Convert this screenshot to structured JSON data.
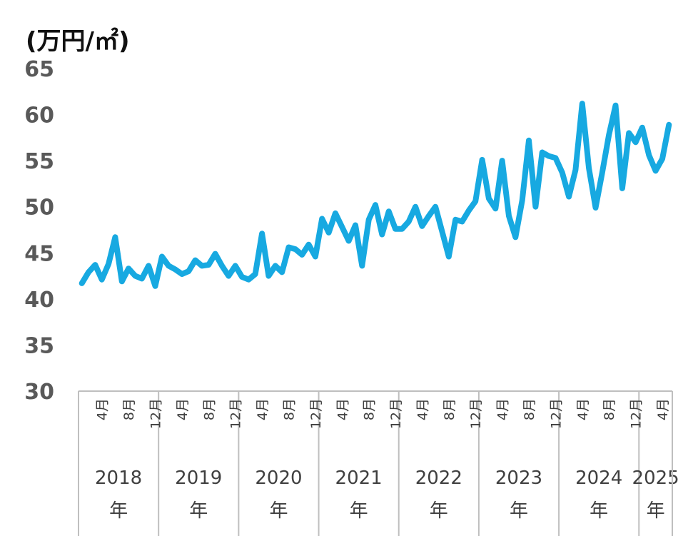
{
  "unit_label": "(万円/㎡)",
  "chart_data": {
    "type": "line",
    "ylim": [
      30,
      65
    ],
    "yticks": [
      "30",
      "35",
      "40",
      "45",
      "50",
      "55",
      "60",
      "65"
    ],
    "grid": false,
    "line_color": "#17A9E1",
    "axis_color": "#BFBFBF",
    "month_tick_labels": [
      "4月",
      "8月",
      "12月"
    ],
    "year_labels": [
      "2018年",
      "2019年",
      "2020年",
      "2021年",
      "2022年",
      "2023年",
      "2024年",
      "2025年"
    ],
    "x_start": "2018-01",
    "x_end": "2025-08",
    "series": [
      {
        "values": [
          41.7,
          42.9,
          43.7,
          42.1,
          43.8,
          46.7,
          41.9,
          43.3,
          42.5,
          42.2,
          43.6,
          41.4,
          44.6,
          43.6,
          43.2,
          42.7,
          43.0,
          44.2,
          43.6,
          43.7,
          44.9,
          43.6,
          42.5,
          43.6,
          42.4,
          42.1,
          42.7,
          47.1,
          42.5,
          43.6,
          42.9,
          45.6,
          45.4,
          44.8,
          45.9,
          44.6,
          48.7,
          47.2,
          49.3,
          47.8,
          46.3,
          48.0,
          43.6,
          48.6,
          50.2,
          47.0,
          49.5,
          47.6,
          47.6,
          48.4,
          50.0,
          47.9,
          49.0,
          50.0,
          47.3,
          44.6,
          48.6,
          48.4,
          49.6,
          50.6,
          55.1,
          50.9,
          49.8,
          55.0,
          49.0,
          46.7,
          50.7,
          57.2,
          50.0,
          55.9,
          55.5,
          55.3,
          53.7,
          51.1,
          54.0,
          61.2,
          54.2,
          49.9,
          53.7,
          57.8,
          61.0,
          52.0,
          58.0,
          57.0,
          58.6,
          55.6,
          53.9,
          55.2,
          58.9
        ]
      }
    ]
  }
}
